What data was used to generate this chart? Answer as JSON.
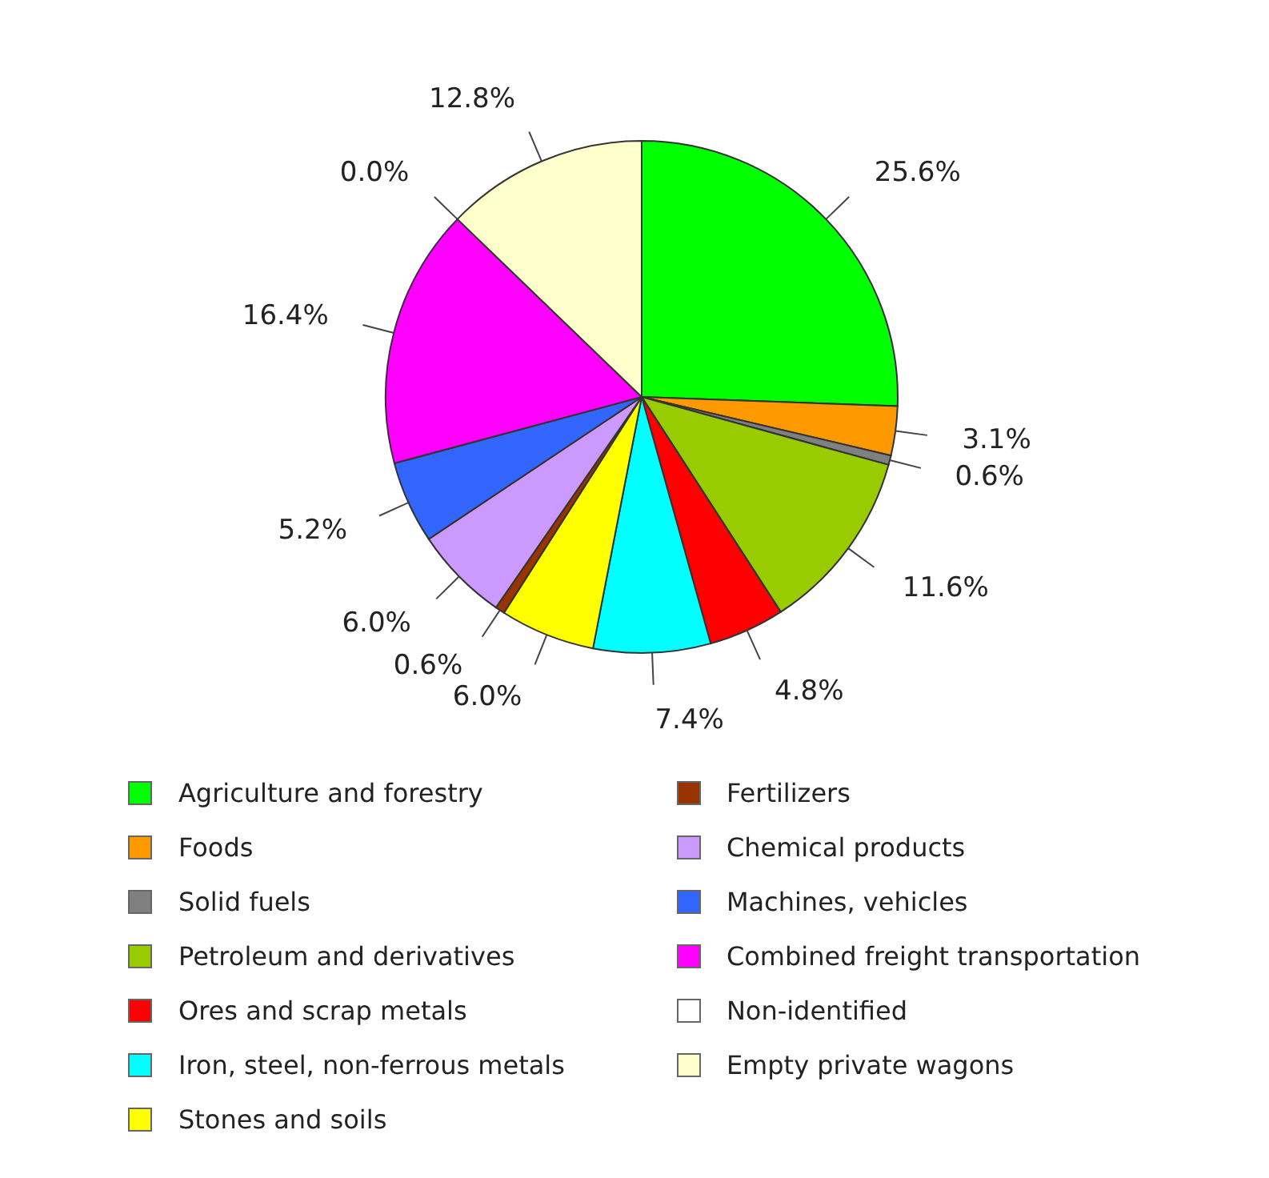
{
  "chart_data": {
    "type": "pie",
    "categories": [
      "Agriculture and forestry",
      "Foods",
      "Solid fuels",
      "Petroleum and derivatives",
      "Ores and scrap metals",
      "Iron, steel, non-ferrous metals",
      "Stones and soils",
      "Fertilizers",
      "Chemical products",
      "Machines, vehicles",
      "Combined freight transportation",
      "Non-identified",
      "Empty private wagons"
    ],
    "values": [
      25.6,
      3.1,
      0.6,
      11.6,
      4.8,
      7.4,
      6.0,
      0.6,
      6.0,
      5.2,
      16.4,
      0.0,
      12.8
    ],
    "value_labels": [
      "25.6%",
      "3.1%",
      "0.6%",
      "11.6%",
      "4.8%",
      "7.4%",
      "6.0%",
      "0.6%",
      "6.0%",
      "5.2%",
      "16.4%",
      "0.0%",
      "12.8%"
    ],
    "colors": [
      "#00ff00",
      "#ff9900",
      "#808080",
      "#99cc00",
      "#ff0000",
      "#00ffff",
      "#ffff00",
      "#993300",
      "#cc99ff",
      "#3366ff",
      "#ff00ff",
      "#ffffff",
      "#ffffcc"
    ],
    "legend": "bottom"
  }
}
